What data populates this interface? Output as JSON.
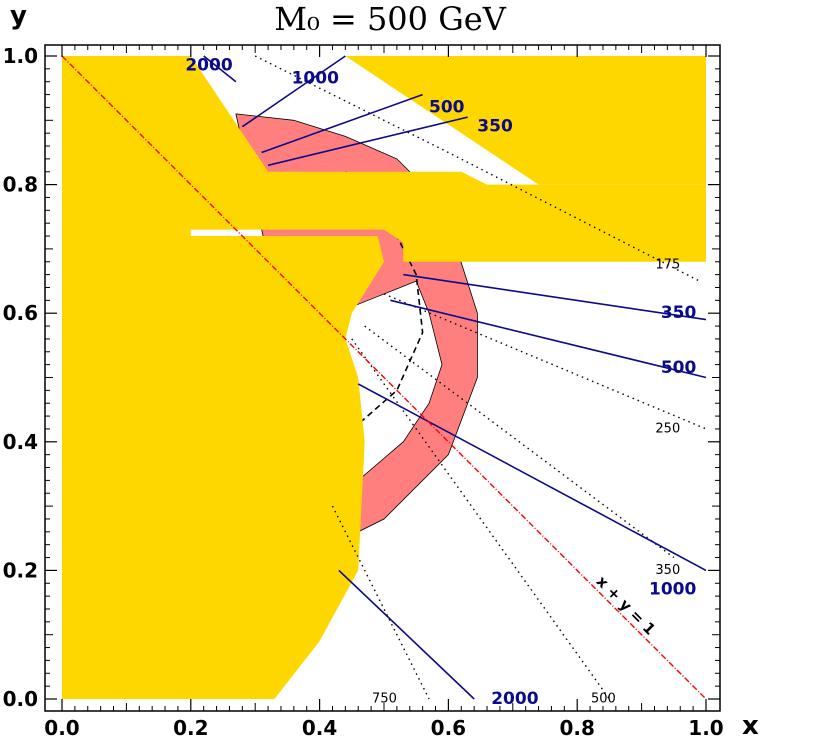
{
  "chart_data": {
    "type": "contour",
    "title": "M₀ = 500 GeV",
    "xlabel": "x",
    "ylabel": "y",
    "xlim": [
      0.0,
      1.0
    ],
    "ylim": [
      0.0,
      1.0
    ],
    "x_ticks": [
      "0.0",
      "0.2",
      "0.4",
      "0.6",
      "0.8",
      "1.0"
    ],
    "y_ticks": [
      "0.0",
      "0.2",
      "0.4",
      "0.6",
      "0.8",
      "1.0"
    ],
    "colors": {
      "excluded_region": "#ffd700",
      "allowed_band": "#ff7f7f",
      "solid_contours": "#0a0a8a",
      "dotted_contours": "#000000",
      "diagonal": "#ff0000"
    },
    "excluded_region": [
      [
        [
          0.0,
          1.0
        ],
        [
          0.2,
          1.0
        ],
        [
          0.32,
          0.82
        ],
        [
          0.62,
          0.82
        ],
        [
          0.66,
          0.8
        ],
        [
          1.0,
          0.8
        ],
        [
          1.0,
          0.68
        ],
        [
          0.53,
          0.68
        ],
        [
          0.53,
          0.71
        ],
        [
          0.5,
          0.73
        ],
        [
          0.2,
          0.73
        ],
        [
          0.2,
          0.0
        ],
        [
          0.0,
          0.0
        ]
      ],
      [
        [
          0.44,
          1.0
        ],
        [
          1.0,
          1.0
        ],
        [
          1.0,
          0.8
        ],
        [
          0.74,
          0.8
        ]
      ],
      [
        [
          0.18,
          0.72
        ],
        [
          0.49,
          0.72
        ],
        [
          0.5,
          0.68
        ],
        [
          0.45,
          0.6
        ],
        [
          0.44,
          0.56
        ],
        [
          0.46,
          0.5
        ],
        [
          0.47,
          0.4
        ],
        [
          0.46,
          0.2
        ],
        [
          0.4,
          0.09
        ],
        [
          0.33,
          0.0
        ],
        [
          0.18,
          0.0
        ]
      ]
    ],
    "band": {
      "outer_edge": [
        [
          0.27,
          0.91
        ],
        [
          0.36,
          0.9
        ],
        [
          0.44,
          0.875
        ],
        [
          0.52,
          0.84
        ],
        [
          0.58,
          0.78
        ],
        [
          0.61,
          0.71
        ],
        [
          0.645,
          0.6
        ],
        [
          0.645,
          0.5
        ],
        [
          0.6,
          0.38
        ],
        [
          0.5,
          0.28
        ],
        [
          0.38,
          0.22
        ],
        [
          0.3,
          0.2
        ]
      ],
      "inner_edge": [
        [
          0.35,
          0.55
        ],
        [
          0.45,
          0.61
        ],
        [
          0.55,
          0.65
        ],
        [
          0.57,
          0.6
        ],
        [
          0.59,
          0.52
        ],
        [
          0.57,
          0.46
        ],
        [
          0.53,
          0.4
        ],
        [
          0.46,
          0.34
        ],
        [
          0.39,
          0.31
        ],
        [
          0.34,
          0.3
        ]
      ],
      "dashed_midline": [
        [
          0.44,
          0.82
        ],
        [
          0.52,
          0.72
        ],
        [
          0.55,
          0.66
        ],
        [
          0.56,
          0.57
        ],
        [
          0.52,
          0.48
        ],
        [
          0.44,
          0.41
        ],
        [
          0.34,
          0.35
        ]
      ]
    },
    "diagonal": {
      "from": [
        0.0,
        1.0
      ],
      "to": [
        1.0,
        0.0
      ],
      "label": "x + y = 1"
    },
    "solid_contours": [
      {
        "label": "2000",
        "points": [
          [
            0.22,
            1.0
          ],
          [
            0.27,
            0.96
          ]
        ],
        "label_at": [
          0.265,
          0.985
        ]
      },
      {
        "label": "1000",
        "points": [
          [
            0.28,
            0.89
          ],
          [
            0.44,
            1.0
          ]
        ],
        "label_at": [
          0.43,
          0.965
        ]
      },
      {
        "label": "500",
        "points": [
          [
            0.31,
            0.85
          ],
          [
            0.56,
            0.94
          ]
        ],
        "label_at": [
          0.625,
          0.92
        ]
      },
      {
        "label": "350",
        "points": [
          [
            0.32,
            0.83
          ],
          [
            0.63,
            0.905
          ]
        ],
        "label_at": [
          0.7,
          0.89
        ]
      },
      {
        "label": "350",
        "points": [
          [
            0.53,
            0.66
          ],
          [
            1.0,
            0.59
          ]
        ],
        "label_at": [
          0.985,
          0.6
        ]
      },
      {
        "label": "500",
        "points": [
          [
            0.51,
            0.62
          ],
          [
            1.0,
            0.5
          ]
        ],
        "label_at": [
          0.985,
          0.515
        ]
      },
      {
        "label": "1000",
        "points": [
          [
            0.46,
            0.49
          ],
          [
            1.0,
            0.2
          ]
        ],
        "label_at": [
          0.985,
          0.17
        ]
      },
      {
        "label": "2000",
        "points": [
          [
            0.43,
            0.2
          ],
          [
            0.64,
            0.0
          ]
        ],
        "label_at": [
          0.74,
          0.0
        ]
      }
    ],
    "dotted_contours": [
      {
        "label": "175",
        "points": [
          [
            0.3,
            1.0
          ],
          [
            0.6,
            0.85
          ],
          [
            0.99,
            0.65
          ]
        ],
        "label_at": [
          0.96,
          0.675
        ]
      },
      {
        "label": "250",
        "points": [
          [
            0.5,
            0.63
          ],
          [
            1.0,
            0.42
          ]
        ],
        "label_at": [
          0.96,
          0.42
        ]
      },
      {
        "label": "350",
        "points": [
          [
            0.47,
            0.58
          ],
          [
            0.95,
            0.22
          ]
        ],
        "label_at": [
          0.96,
          0.2
        ]
      },
      {
        "label": "500",
        "points": [
          [
            0.45,
            0.56
          ],
          [
            0.85,
            0.0
          ]
        ],
        "label_at": [
          0.86,
          0.0
        ]
      },
      {
        "label": "750",
        "points": [
          [
            0.42,
            0.3
          ],
          [
            0.57,
            0.0
          ]
        ],
        "label_at": [
          0.52,
          0.0
        ]
      }
    ]
  }
}
